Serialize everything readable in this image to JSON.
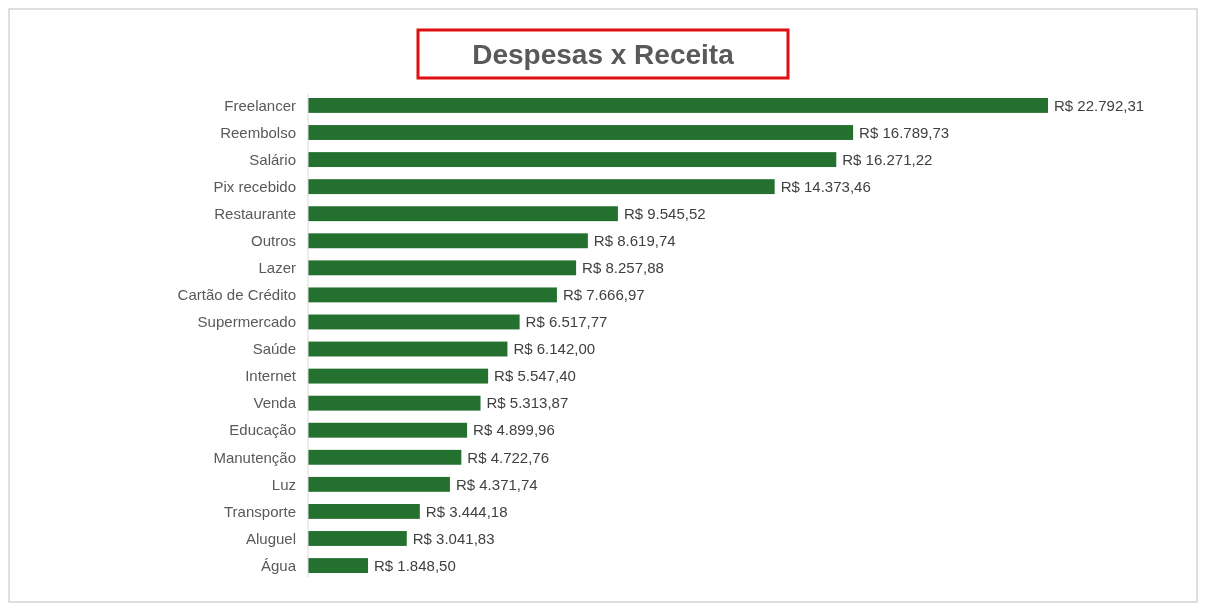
{
  "chart_data": {
    "type": "bar",
    "orientation": "horizontal",
    "title": "Despesas x Receita",
    "categories": [
      "Freelancer",
      "Reembolso",
      "Salário",
      "Pix recebido",
      "Restaurante",
      "Outros",
      "Lazer",
      "Cartão de Crédito",
      "Supermercado",
      "Saúde",
      "Internet",
      "Venda",
      "Educação",
      "Manutenção",
      "Luz",
      "Transporte",
      "Aluguel",
      "Água"
    ],
    "values": [
      22792.31,
      16789.73,
      16271.22,
      14373.46,
      9545.52,
      8619.74,
      8257.88,
      7666.97,
      6517.77,
      6142.0,
      5547.4,
      5313.87,
      4899.96,
      4722.76,
      4371.74,
      3444.18,
      3041.83,
      1848.5
    ],
    "value_labels": [
      "R$ 22.792,31",
      "R$ 16.789,73",
      "R$ 16.271,22",
      "R$ 14.373,46",
      "R$ 9.545,52",
      "R$ 8.619,74",
      "R$ 8.257,88",
      "R$ 7.666,97",
      "R$ 6.517,77",
      "R$ 6.142,00",
      "R$ 5.547,40",
      "R$ 5.313,87",
      "R$ 4.899,96",
      "R$ 4.722,76",
      "R$ 4.371,74",
      "R$ 3.444,18",
      "R$ 3.041,83",
      "R$ 1.848,50"
    ],
    "color": "#24702f"
  }
}
